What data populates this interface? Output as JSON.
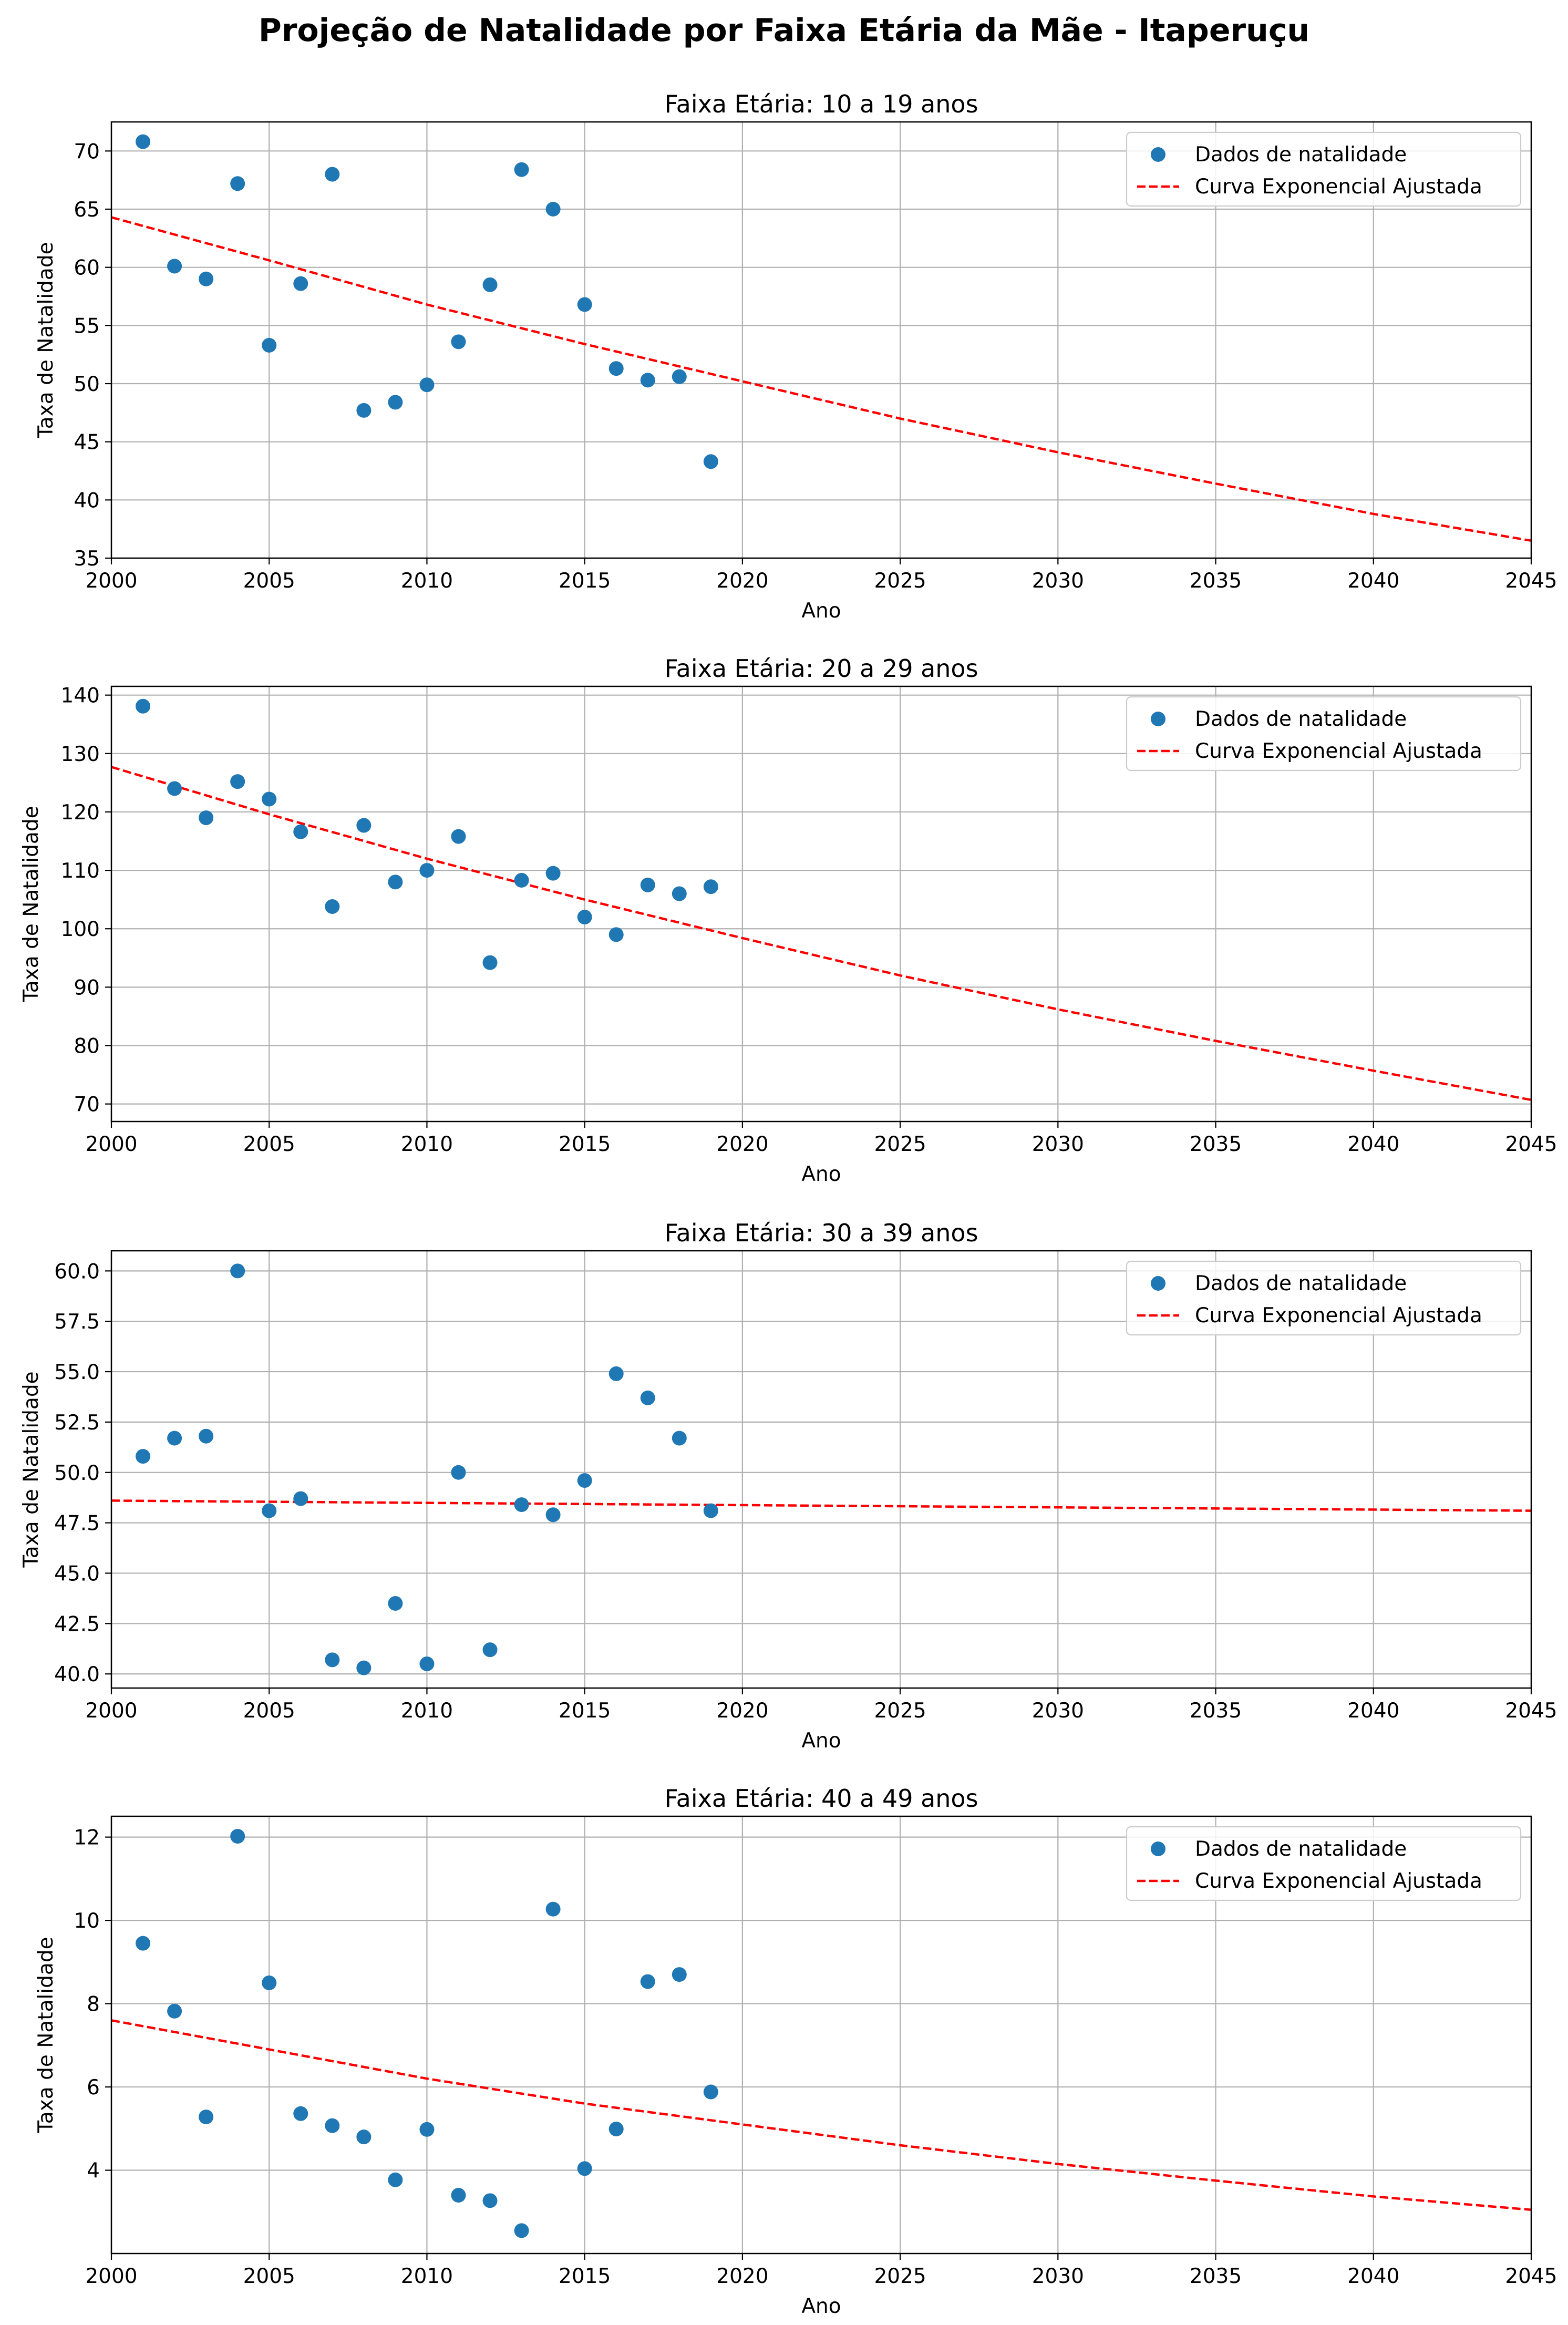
{
  "suptitle": "Projeção de Natalidade por Faixa Etária da Mãe - Itaperuçu",
  "colors": {
    "scatter": "#1f77b4",
    "fit_line": "#ff0000",
    "grid": "#b0b0b0",
    "axes": "#000000"
  },
  "chart_data": [
    {
      "type": "scatter",
      "title": "Faixa Etária: 10 a 19 anos",
      "xlabel": "Ano",
      "ylabel": "Taxa de Natalidade",
      "xlim": [
        2000,
        2045
      ],
      "ylim": [
        35,
        72.5
      ],
      "xticks": [
        2000,
        2005,
        2010,
        2015,
        2020,
        2025,
        2030,
        2035,
        2040,
        2045
      ],
      "yticks": [
        "35",
        "40",
        "45",
        "50",
        "55",
        "60",
        "65",
        "70"
      ],
      "grid": true,
      "legend_position": "top-right",
      "series": [
        {
          "name": "Dados de natalidade",
          "kind": "scatter",
          "x": [
            2001,
            2002,
            2003,
            2004,
            2005,
            2006,
            2007,
            2008,
            2009,
            2010,
            2011,
            2012,
            2013,
            2014,
            2015,
            2016,
            2017,
            2018,
            2019
          ],
          "y": [
            70.8,
            60.1,
            59.0,
            67.2,
            53.3,
            58.6,
            68.0,
            47.7,
            48.4,
            49.9,
            53.6,
            58.5,
            68.4,
            65.0,
            56.8,
            51.3,
            50.3,
            50.6,
            43.3
          ]
        },
        {
          "name": "Curva Exponencial Ajustada",
          "kind": "line",
          "style": "dashed",
          "x": [
            2000,
            2005,
            2010,
            2015,
            2020,
            2025,
            2030,
            2035,
            2040,
            2045
          ],
          "y": [
            64.3,
            60.6,
            56.8,
            53.4,
            50.2,
            47.0,
            44.1,
            41.4,
            38.8,
            36.5
          ]
        }
      ]
    },
    {
      "type": "scatter",
      "title": "Faixa Etária: 20 a 29 anos",
      "xlabel": "Ano",
      "ylabel": "Taxa de Natalidade",
      "xlim": [
        2000,
        2045
      ],
      "ylim": [
        67,
        141.5
      ],
      "xticks": [
        2000,
        2005,
        2010,
        2015,
        2020,
        2025,
        2030,
        2035,
        2040,
        2045
      ],
      "yticks": [
        "70",
        "80",
        "90",
        "100",
        "110",
        "120",
        "130",
        "140"
      ],
      "grid": true,
      "legend_position": "top-right",
      "series": [
        {
          "name": "Dados de natalidade",
          "kind": "scatter",
          "x": [
            2001,
            2002,
            2003,
            2004,
            2005,
            2006,
            2007,
            2008,
            2009,
            2010,
            2011,
            2012,
            2013,
            2014,
            2015,
            2016,
            2017,
            2018,
            2019
          ],
          "y": [
            138.1,
            124.0,
            119.0,
            125.2,
            122.2,
            116.6,
            103.8,
            117.7,
            108.0,
            110.0,
            115.8,
            94.2,
            108.3,
            109.5,
            102.0,
            99.0,
            107.5,
            106.0,
            107.2
          ]
        },
        {
          "name": "Curva Exponencial Ajustada",
          "kind": "line",
          "style": "dashed",
          "x": [
            2000,
            2005,
            2010,
            2015,
            2020,
            2025,
            2030,
            2035,
            2040,
            2045
          ],
          "y": [
            127.7,
            119.6,
            112.0,
            105.0,
            98.4,
            92.0,
            86.2,
            80.8,
            75.7,
            70.7
          ]
        }
      ]
    },
    {
      "type": "scatter",
      "title": "Faixa Etária: 30 a 39 anos",
      "xlabel": "Ano",
      "ylabel": "Taxa de Natalidade",
      "xlim": [
        2000,
        2045
      ],
      "ylim": [
        39.3,
        61
      ],
      "xticks": [
        2000,
        2005,
        2010,
        2015,
        2020,
        2025,
        2030,
        2035,
        2040,
        2045
      ],
      "yticks": [
        "40.0",
        "42.5",
        "45.0",
        "47.5",
        "50.0",
        "52.5",
        "55.0",
        "57.5",
        "60.0"
      ],
      "grid": true,
      "legend_position": "top-right",
      "series": [
        {
          "name": "Dados de natalidade",
          "kind": "scatter",
          "x": [
            2001,
            2002,
            2003,
            2004,
            2005,
            2006,
            2007,
            2008,
            2009,
            2010,
            2011,
            2012,
            2013,
            2014,
            2015,
            2016,
            2017,
            2018,
            2019
          ],
          "y": [
            50.8,
            51.7,
            51.8,
            60.0,
            48.1,
            48.7,
            40.7,
            40.3,
            43.5,
            40.5,
            50.0,
            41.2,
            48.4,
            47.9,
            49.6,
            54.9,
            53.7,
            51.7,
            48.1
          ]
        },
        {
          "name": "Curva Exponencial Ajustada",
          "kind": "line",
          "style": "dashed",
          "x": [
            2000,
            2045
          ],
          "y": [
            48.6,
            48.1
          ]
        }
      ]
    },
    {
      "type": "scatter",
      "title": "Faixa Etária: 40 a 49 anos",
      "xlabel": "Ano",
      "ylabel": "Taxa de Natalidade",
      "xlim": [
        2000,
        2045
      ],
      "ylim": [
        2.0,
        12.5
      ],
      "xticks": [
        2000,
        2005,
        2010,
        2015,
        2020,
        2025,
        2030,
        2035,
        2040,
        2045
      ],
      "yticks": [
        "4",
        "6",
        "8",
        "10",
        "12"
      ],
      "grid": true,
      "legend_position": "top-right",
      "series": [
        {
          "name": "Dados de natalidade",
          "kind": "scatter",
          "x": [
            2001,
            2002,
            2003,
            2004,
            2005,
            2006,
            2007,
            2008,
            2009,
            2010,
            2011,
            2012,
            2013,
            2014,
            2015,
            2016,
            2017,
            2018,
            2019
          ],
          "y": [
            9.45,
            7.82,
            5.28,
            12.02,
            8.5,
            5.36,
            5.07,
            4.8,
            3.77,
            4.98,
            3.4,
            3.27,
            2.55,
            10.27,
            4.04,
            4.99,
            8.53,
            8.7,
            5.88
          ]
        },
        {
          "name": "Curva Exponencial Ajustada",
          "kind": "line",
          "style": "dashed",
          "x": [
            2000,
            2005,
            2010,
            2015,
            2020,
            2025,
            2030,
            2035,
            2040,
            2045
          ],
          "y": [
            7.6,
            6.9,
            6.2,
            5.6,
            5.1,
            4.6,
            4.15,
            3.75,
            3.37,
            3.05
          ]
        }
      ]
    }
  ]
}
